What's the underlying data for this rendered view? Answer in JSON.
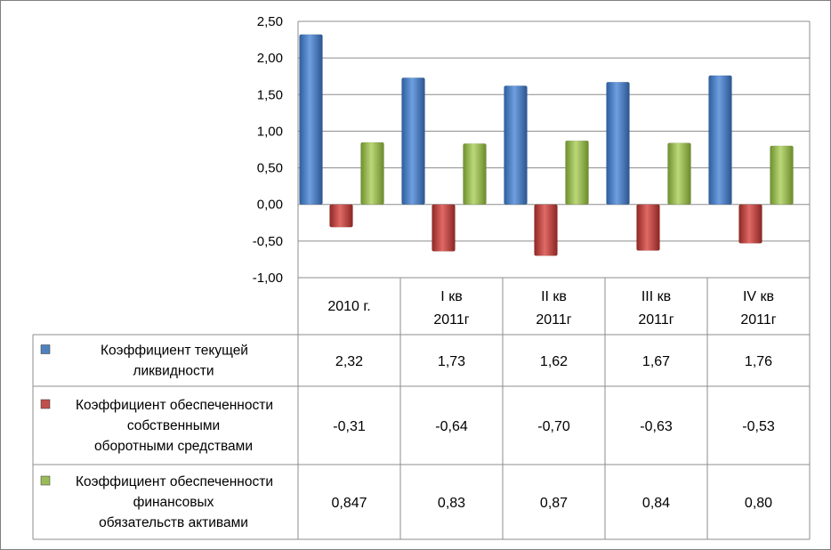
{
  "chart_data": {
    "type": "bar",
    "categories": [
      "2010 г.",
      "I кв 2011г",
      "II кв 2011г",
      "III кв 2011г",
      "IV кв 2011г"
    ],
    "ylim": [
      -1.0,
      2.5
    ],
    "yticks": [
      "2,50",
      "2,00",
      "1,50",
      "1,00",
      "0,50",
      "0,00",
      "-0,50",
      "-1,00"
    ],
    "grid": true,
    "legend_placement": "data-table-left",
    "series": [
      {
        "name": "Коэффициент текущей ликвидности",
        "values": [
          2.32,
          1.73,
          1.62,
          1.67,
          1.76
        ],
        "labels": [
          "2,32",
          "1,73",
          "1,62",
          "1,67",
          "1,76"
        ],
        "color": "#4f81bd"
      },
      {
        "name": "Коэффициент обеспеченности собственными оборотными средствами",
        "values": [
          -0.31,
          -0.64,
          -0.7,
          -0.63,
          -0.53
        ],
        "labels": [
          "-0,31",
          "-0,64",
          "-0,70",
          "-0,63",
          "-0,53"
        ],
        "color": "#c0504d"
      },
      {
        "name": "Коэффициент обеспеченности финансовых обязательств активами",
        "values": [
          0.847,
          0.83,
          0.87,
          0.84,
          0.8
        ],
        "labels": [
          "0,847",
          "0,83",
          "0,87",
          "0,84",
          "0,80"
        ],
        "color": "#9bbb59"
      }
    ]
  }
}
